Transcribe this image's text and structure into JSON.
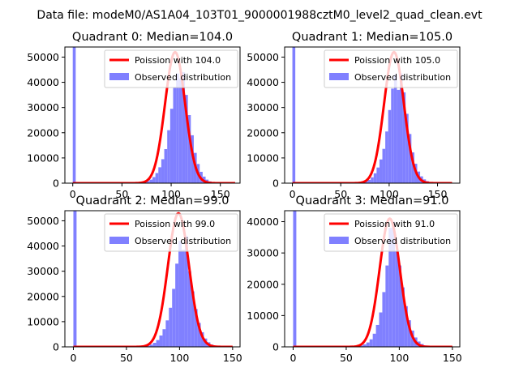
{
  "page": {
    "suptitle": "Data file: modeM0/AS1A04_103T01_9000001988cztM0_level2_quad_clean.evt"
  },
  "style": {
    "poisson_color": "#ff0000",
    "hist_color": "#8080ff",
    "axis_color": "#000000",
    "background": "#ffffff"
  },
  "chart_data": [
    {
      "type": "bar",
      "title": "Quadrant 0: Median=104.0",
      "median": 104.0,
      "xlim": [
        -8,
        170
      ],
      "ylim": [
        0,
        54000
      ],
      "xticks": [
        0,
        50,
        100,
        150
      ],
      "yticks": [
        0,
        10000,
        20000,
        30000,
        40000,
        50000
      ],
      "ytick_labels": [
        "0",
        "10000",
        "20000",
        "30000",
        "40000",
        "50000"
      ],
      "legend": {
        "position": "top-right",
        "poisson_label": "Poission with 104.0",
        "hist_label": "Observed distribution"
      },
      "spike": {
        "x": 0,
        "value": 54000
      },
      "bin_width": 3,
      "histogram": [
        [
          60,
          60
        ],
        [
          63,
          80
        ],
        [
          66,
          140
        ],
        [
          69,
          260
        ],
        [
          72,
          450
        ],
        [
          75,
          800
        ],
        [
          78,
          1400
        ],
        [
          81,
          2400
        ],
        [
          84,
          4000
        ],
        [
          87,
          6300
        ],
        [
          90,
          9500
        ],
        [
          93,
          13500
        ],
        [
          96,
          21000
        ],
        [
          99,
          29500
        ],
        [
          102,
          38000
        ],
        [
          105,
          43500
        ],
        [
          108,
          41500
        ],
        [
          111,
          44000
        ],
        [
          114,
          35000
        ],
        [
          117,
          27000
        ],
        [
          120,
          19000
        ],
        [
          123,
          12000
        ],
        [
          126,
          7600
        ],
        [
          129,
          4500
        ],
        [
          132,
          2600
        ],
        [
          135,
          1400
        ],
        [
          138,
          700
        ],
        [
          141,
          350
        ],
        [
          144,
          150
        ],
        [
          147,
          80
        ],
        [
          150,
          40
        ],
        [
          153,
          20
        ],
        [
          156,
          10
        ]
      ],
      "poisson": {
        "lambda": 104.0,
        "peak": 52000,
        "x_range": [
          0,
          165
        ]
      }
    },
    {
      "type": "bar",
      "title": "Quadrant 1: Median=105.0",
      "median": 105.0,
      "xlim": [
        -8,
        173
      ],
      "ylim": [
        0,
        54000
      ],
      "xticks": [
        0,
        50,
        100,
        150
      ],
      "yticks": [
        0,
        10000,
        20000,
        30000,
        40000,
        50000
      ],
      "ytick_labels": [
        "0",
        "10000",
        "20000",
        "30000",
        "40000",
        "50000"
      ],
      "legend": {
        "position": "top-right",
        "poisson_label": "Poission with 105.0",
        "hist_label": "Observed distribution"
      },
      "spike": {
        "x": 0,
        "value": 54000
      },
      "bin_width": 3,
      "histogram": [
        [
          60,
          60
        ],
        [
          63,
          80
        ],
        [
          66,
          130
        ],
        [
          69,
          240
        ],
        [
          72,
          420
        ],
        [
          75,
          760
        ],
        [
          78,
          1300
        ],
        [
          81,
          2300
        ],
        [
          84,
          3900
        ],
        [
          87,
          6200
        ],
        [
          90,
          9400
        ],
        [
          93,
          13600
        ],
        [
          96,
          20500
        ],
        [
          99,
          29000
        ],
        [
          102,
          37500
        ],
        [
          105,
          43000
        ],
        [
          108,
          37000
        ],
        [
          111,
          43500
        ],
        [
          114,
          36000
        ],
        [
          117,
          27500
        ],
        [
          120,
          19500
        ],
        [
          123,
          12200
        ],
        [
          126,
          7700
        ],
        [
          129,
          4600
        ],
        [
          132,
          2700
        ],
        [
          135,
          1500
        ],
        [
          138,
          800
        ],
        [
          141,
          400
        ],
        [
          144,
          180
        ],
        [
          147,
          90
        ],
        [
          150,
          50
        ],
        [
          153,
          25
        ],
        [
          156,
          12
        ]
      ],
      "poisson": {
        "lambda": 105.0,
        "peak": 52000,
        "x_range": [
          0,
          165
        ]
      }
    },
    {
      "type": "bar",
      "title": "Quadrant 2: Median=99.0",
      "median": 99.0,
      "xlim": [
        -8,
        157
      ],
      "ylim": [
        0,
        54000
      ],
      "xticks": [
        0,
        50,
        100,
        150
      ],
      "yticks": [
        0,
        10000,
        20000,
        30000,
        40000,
        50000
      ],
      "ytick_labels": [
        "0",
        "10000",
        "20000",
        "30000",
        "40000",
        "50000"
      ],
      "legend": {
        "position": "top-right",
        "poisson_label": "Poission with 99.0",
        "hist_label": "Observed distribution"
      },
      "spike": {
        "x": 0,
        "value": 54000
      },
      "bin_width": 3,
      "histogram": [
        [
          57,
          60
        ],
        [
          60,
          90
        ],
        [
          63,
          150
        ],
        [
          66,
          280
        ],
        [
          69,
          500
        ],
        [
          72,
          900
        ],
        [
          75,
          1600
        ],
        [
          78,
          2700
        ],
        [
          81,
          4500
        ],
        [
          84,
          7000
        ],
        [
          87,
          10500
        ],
        [
          90,
          15500
        ],
        [
          93,
          23000
        ],
        [
          96,
          33000
        ],
        [
          99,
          42000
        ],
        [
          102,
          38500
        ],
        [
          105,
          44000
        ],
        [
          108,
          30000
        ],
        [
          111,
          22000
        ],
        [
          114,
          15000
        ],
        [
          117,
          9500
        ],
        [
          120,
          5800
        ],
        [
          123,
          3300
        ],
        [
          126,
          1800
        ],
        [
          129,
          900
        ],
        [
          132,
          450
        ],
        [
          135,
          200
        ],
        [
          138,
          100
        ],
        [
          141,
          50
        ],
        [
          144,
          25
        ],
        [
          147,
          12
        ]
      ],
      "poisson": {
        "lambda": 99.0,
        "peak": 53000,
        "x_range": [
          0,
          150
        ]
      }
    },
    {
      "type": "bar",
      "title": "Quadrant 3: Median=91.0",
      "median": 91.0,
      "xlim": [
        -8,
        157
      ],
      "ylim": [
        0,
        43500
      ],
      "xticks": [
        0,
        50,
        100,
        150
      ],
      "yticks": [
        0,
        10000,
        20000,
        30000,
        40000
      ],
      "ytick_labels": [
        "0",
        "10000",
        "20000",
        "30000",
        "40000"
      ],
      "legend": {
        "position": "top-right",
        "poisson_label": "Poission with 91.0",
        "hist_label": "Observed distribution"
      },
      "spike": {
        "x": 0,
        "value": 43500
      },
      "bin_width": 3,
      "histogram": [
        [
          51,
          60
        ],
        [
          54,
          90
        ],
        [
          57,
          150
        ],
        [
          60,
          260
        ],
        [
          63,
          450
        ],
        [
          66,
          800
        ],
        [
          69,
          1400
        ],
        [
          72,
          2400
        ],
        [
          75,
          4200
        ],
        [
          78,
          7000
        ],
        [
          81,
          11000
        ],
        [
          84,
          17500
        ],
        [
          87,
          26000
        ],
        [
          90,
          38000
        ],
        [
          93,
          40000
        ],
        [
          96,
          30500
        ],
        [
          99,
          26000
        ],
        [
          102,
          19000
        ],
        [
          105,
          13000
        ],
        [
          108,
          8500
        ],
        [
          111,
          5200
        ],
        [
          114,
          3000
        ],
        [
          117,
          1700
        ],
        [
          120,
          900
        ],
        [
          123,
          450
        ],
        [
          126,
          220
        ],
        [
          129,
          100
        ],
        [
          132,
          50
        ],
        [
          135,
          25
        ],
        [
          138,
          12
        ]
      ],
      "poisson": {
        "lambda": 91.0,
        "peak": 41000,
        "x_range": [
          0,
          150
        ]
      }
    }
  ]
}
